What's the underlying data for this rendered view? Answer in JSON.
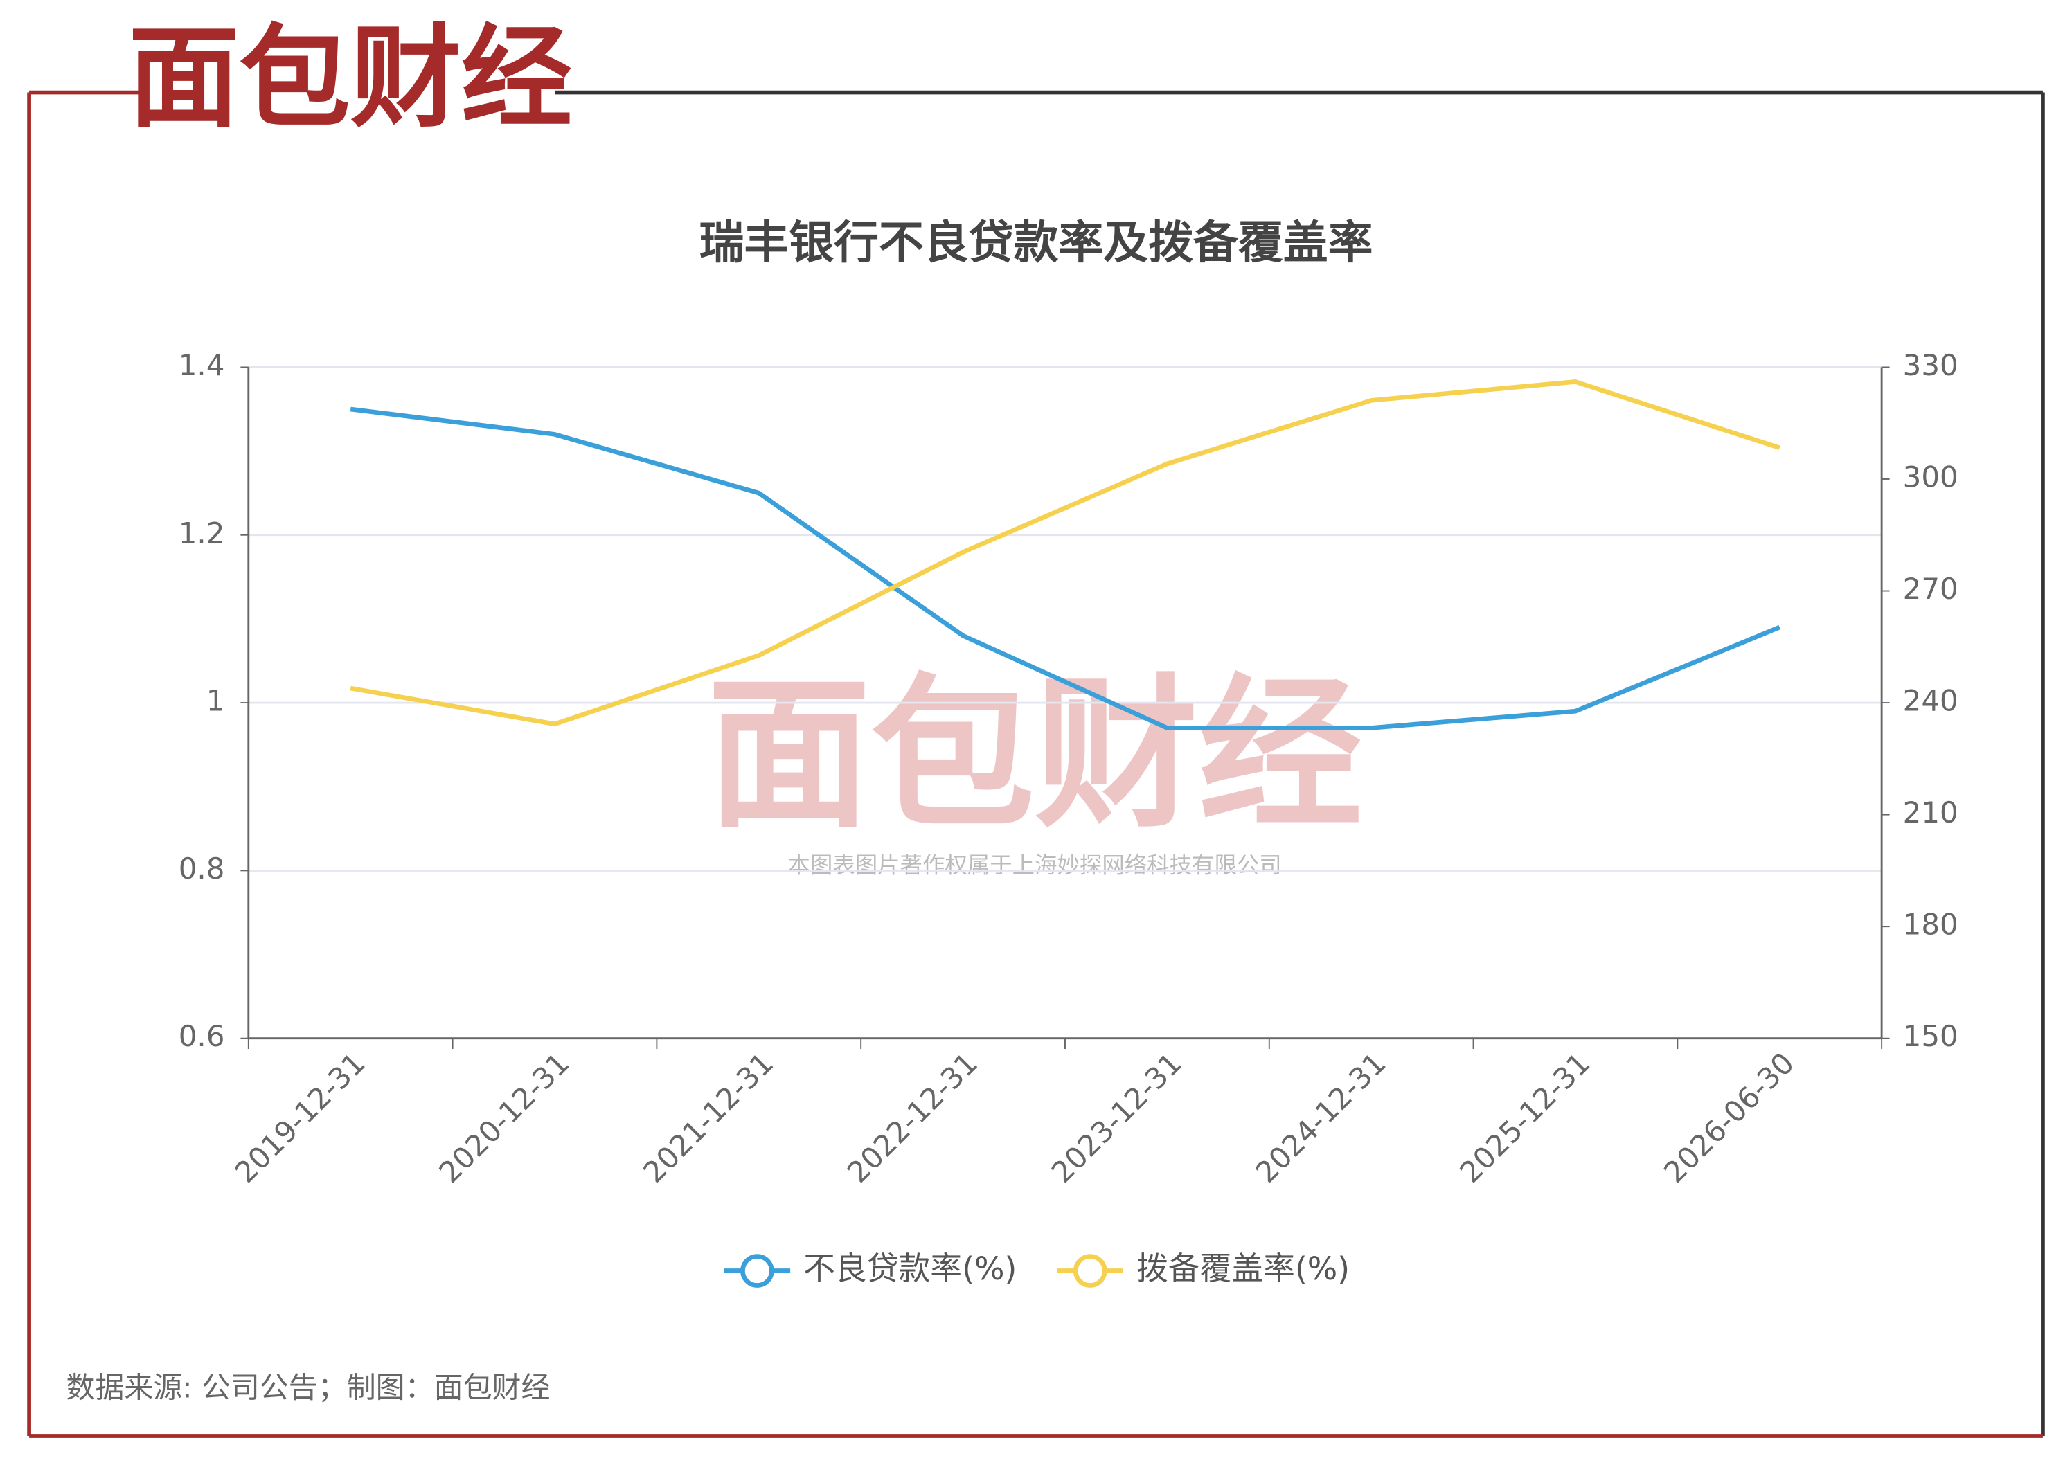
{
  "logo": "面包财经",
  "watermark": {
    "logo": "面包财经",
    "text": "本图表图片著作权属于上海妙探网络科技有限公司"
  },
  "source": "数据来源: 公司公告；制图：面包财经",
  "chart_data": {
    "type": "line",
    "title": "瑞丰银行不良贷款率及拨备覆盖率",
    "categories": [
      "2019-12-31",
      "2020-12-31",
      "2021-12-31",
      "2022-12-31",
      "2023-12-31",
      "2024-12-31",
      "2025-12-31",
      "2026-06-30"
    ],
    "series": [
      {
        "name": "不良贷款率(%)",
        "color": "#3ba0d9",
        "values": [
          1.35,
          1.32,
          1.25,
          1.08,
          0.97,
          0.97,
          0.99,
          1.09
        ]
      },
      {
        "name": "拨备覆盖率(%)",
        "color": "#f5d14f",
        "axis": "y2",
        "values": [
          243.9,
          234.3,
          252.7,
          280.4,
          304.1,
          321.1,
          326.1,
          308.4
        ]
      }
    ],
    "ylim": [
      0.6,
      1.4
    ],
    "yticks": [
      0.6,
      0.8,
      1,
      1.2,
      1.4
    ],
    "y2lim": [
      150,
      330
    ],
    "y2ticks": [
      150,
      180,
      210,
      240,
      270,
      300,
      330
    ],
    "grid": true,
    "legend": "bottom"
  }
}
